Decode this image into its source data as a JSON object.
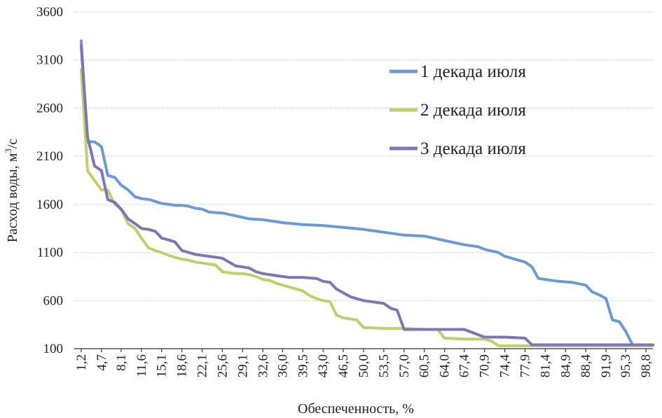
{
  "chart_data": {
    "type": "line",
    "title": "",
    "xlabel": "Обеспеченность, %",
    "ylabel": "Расход воды, м",
    "ylabel_sup": "3",
    "ylabel_tail": "/с",
    "ylim": [
      100,
      3600
    ],
    "xlim": [
      0,
      100
    ],
    "grid": true,
    "legend": "right",
    "yticks": [
      "100",
      "600",
      "1100",
      "1600",
      "2100",
      "2600",
      "3100",
      "3600"
    ],
    "ytick_values": [
      100,
      600,
      1100,
      1600,
      2100,
      2600,
      3100,
      3600
    ],
    "xticks": [
      "1,2",
      "4,7",
      "8,1",
      "11,6",
      "15,1",
      "18,6",
      "22,1",
      "25,6",
      "29,1",
      "32,6",
      "36,0",
      "39,5",
      "43,0",
      "46,5",
      "50,0",
      "53,5",
      "57,0",
      "60,5",
      "64,0",
      "67,4",
      "70,9",
      "74,4",
      "77,9",
      "81,4",
      "84,9",
      "88,4",
      "91,9",
      "95,3",
      "98,8"
    ],
    "xtick_values": [
      1.2,
      4.7,
      8.1,
      11.6,
      15.1,
      18.6,
      22.1,
      25.6,
      29.1,
      32.6,
      36.0,
      39.5,
      43.0,
      46.5,
      50.0,
      53.5,
      57.0,
      60.5,
      64.0,
      67.4,
      70.9,
      74.4,
      77.9,
      81.4,
      84.9,
      88.4,
      91.9,
      95.3,
      98.8
    ],
    "series": [
      {
        "name": "1 декада июля",
        "color": "#6b9bd6",
        "x": [
          1.2,
          2.3,
          3.5,
          4.7,
          5.8,
          7.0,
          8.1,
          9.3,
          10.5,
          11.6,
          13.0,
          14.0,
          15.1,
          16.3,
          17.4,
          18.6,
          19.8,
          20.9,
          22.1,
          23.3,
          25.6,
          27.9,
          30.2,
          32.6,
          36.0,
          39.5,
          43.0,
          46.5,
          50.0,
          53.5,
          57.0,
          60.5,
          62.8,
          65.1,
          67.4,
          69.8,
          71.0,
          73.3,
          74.4,
          75.6,
          77.9,
          79.1,
          80.2,
          81.4,
          83.7,
          86.0,
          88.4,
          89.5,
          90.7,
          91.9,
          93.0,
          94.2,
          95.3,
          96.5,
          97.7,
          98.8,
          100.0
        ],
        "y": [
          3300,
          2250,
          2250,
          2200,
          1900,
          1880,
          1800,
          1750,
          1680,
          1660,
          1650,
          1630,
          1610,
          1600,
          1590,
          1590,
          1580,
          1560,
          1550,
          1520,
          1510,
          1480,
          1450,
          1440,
          1410,
          1390,
          1380,
          1360,
          1340,
          1310,
          1280,
          1270,
          1240,
          1210,
          1180,
          1160,
          1130,
          1100,
          1060,
          1040,
          1000,
          950,
          830,
          820,
          800,
          790,
          760,
          690,
          660,
          620,
          400,
          380,
          280,
          140,
          140,
          140,
          140
        ]
      },
      {
        "name": "2 декада июля",
        "color": "#b9d36a",
        "x": [
          1.2,
          2.3,
          3.5,
          4.7,
          5.8,
          7.0,
          8.1,
          9.3,
          10.5,
          11.6,
          12.8,
          14.0,
          15.1,
          16.3,
          17.4,
          18.6,
          19.8,
          20.9,
          22.1,
          23.3,
          24.4,
          25.6,
          26.7,
          27.9,
          29.1,
          30.2,
          31.4,
          32.6,
          33.7,
          34.9,
          36.0,
          37.2,
          38.4,
          39.5,
          40.7,
          41.9,
          43.0,
          44.2,
          45.3,
          46.5,
          47.7,
          48.8,
          50.0,
          53.5,
          57.0,
          60.5,
          62.8,
          64.0,
          67.4,
          70.9,
          72.1,
          73.3,
          74.4,
          77.9,
          81.4,
          100.0
        ],
        "y": [
          3000,
          1950,
          1850,
          1750,
          1750,
          1600,
          1550,
          1400,
          1350,
          1250,
          1150,
          1120,
          1100,
          1070,
          1050,
          1030,
          1020,
          1000,
          990,
          980,
          970,
          900,
          890,
          880,
          880,
          870,
          850,
          820,
          810,
          780,
          760,
          740,
          720,
          700,
          650,
          620,
          600,
          590,
          450,
          420,
          410,
          400,
          320,
          310,
          310,
          300,
          300,
          210,
          200,
          200,
          180,
          130,
          130,
          130,
          130,
          130
        ]
      },
      {
        "name": "3 декада июля",
        "color": "#7d75b7",
        "x": [
          1.2,
          2.3,
          3.5,
          4.7,
          5.8,
          7.0,
          8.1,
          9.3,
          10.5,
          11.6,
          12.8,
          14.0,
          15.1,
          16.3,
          17.4,
          18.6,
          19.8,
          20.9,
          22.1,
          23.3,
          25.6,
          27.9,
          30.2,
          31.4,
          32.6,
          34.9,
          36.0,
          37.2,
          39.5,
          41.9,
          43.0,
          44.2,
          45.3,
          46.5,
          47.7,
          48.8,
          50.0,
          51.2,
          53.5,
          54.7,
          55.8,
          57.0,
          60.5,
          64.0,
          67.4,
          70.9,
          74.4,
          77.9,
          79.1,
          80.2,
          81.4,
          100.0
        ],
        "y": [
          3250,
          2300,
          2000,
          1950,
          1650,
          1620,
          1550,
          1450,
          1400,
          1350,
          1340,
          1320,
          1250,
          1230,
          1210,
          1120,
          1100,
          1080,
          1070,
          1060,
          1040,
          960,
          940,
          900,
          880,
          860,
          850,
          840,
          840,
          830,
          800,
          790,
          720,
          680,
          640,
          620,
          600,
          590,
          570,
          520,
          500,
          300,
          300,
          300,
          300,
          220,
          220,
          210,
          140,
          140,
          140,
          140
        ]
      }
    ]
  }
}
